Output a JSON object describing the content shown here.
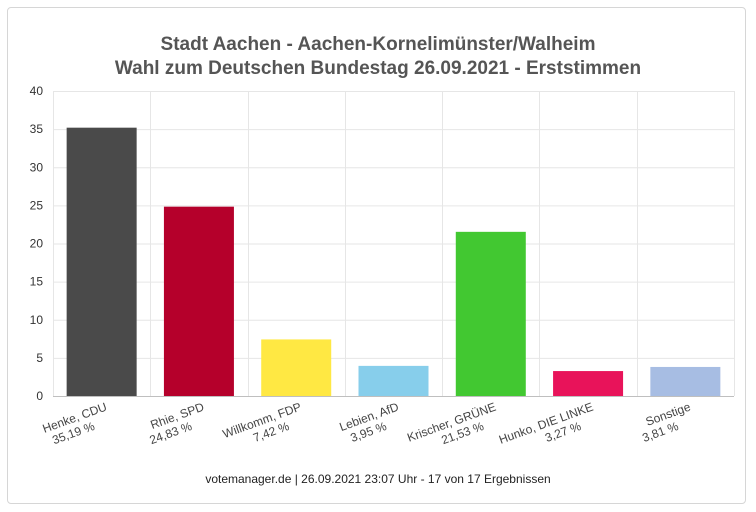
{
  "header": {
    "title_line1": "Stadt Aachen - Aachen-Kornelimünster/Walheim",
    "title_line2": "Wahl zum Deutschen Bundestag 26.09.2021  - Erststimmen"
  },
  "footer": {
    "text": "votemanager.de | 26.09.2021 23:07 Uhr - 17 von 17 Ergebnissen"
  },
  "chart_data": {
    "type": "bar",
    "title": "Stadt Aachen - Aachen-Kornelimünster/Walheim",
    "subtitle": "Wahl zum Deutschen Bundestag 26.09.2021  - Erststimmen",
    "categories": [
      "Henke, CDU",
      "Rhie, SPD",
      "Willkomm, FDP",
      "Lebien, AfD",
      "Krischer, GRÜNE",
      "Hunko, DIE LINKE",
      "Sonstige"
    ],
    "value_labels": [
      "35,19 %",
      "24,83 %",
      "7,42 %",
      "3,95 %",
      "21,53 %",
      "3,27 %",
      "3,81 %"
    ],
    "values": [
      35.19,
      24.83,
      7.42,
      3.95,
      21.53,
      3.27,
      3.81
    ],
    "colors": [
      "#4a4a4a",
      "#b5002b",
      "#ffe843",
      "#87ceeb",
      "#42c831",
      "#e8135a",
      "#a7bde3"
    ],
    "ylim": [
      0,
      40
    ],
    "yticks": [
      0,
      5,
      10,
      15,
      20,
      25,
      30,
      35,
      40
    ],
    "grid": true,
    "xlabel": "",
    "ylabel": ""
  }
}
